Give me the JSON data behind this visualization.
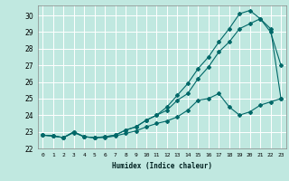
{
  "xlabel": "Humidex (Indice chaleur)",
  "bg_color": "#c0e8e0",
  "grid_color": "#ffffff",
  "line_color": "#006868",
  "xlim": [
    -0.5,
    23.5
  ],
  "ylim": [
    22,
    30.6
  ],
  "xticks": [
    0,
    1,
    2,
    3,
    4,
    5,
    6,
    7,
    8,
    9,
    10,
    11,
    12,
    13,
    14,
    15,
    16,
    17,
    18,
    19,
    20,
    21,
    22,
    23
  ],
  "yticks": [
    22,
    23,
    24,
    25,
    26,
    27,
    28,
    29,
    30
  ],
  "line1_x": [
    0,
    1,
    2,
    3,
    4,
    5,
    6,
    7,
    8,
    9,
    10,
    11,
    12,
    13,
    14,
    15,
    16,
    17,
    18,
    19,
    20,
    21,
    22,
    23
  ],
  "line1_y": [
    22.8,
    22.75,
    22.65,
    22.95,
    22.7,
    22.65,
    22.65,
    22.75,
    22.9,
    23.05,
    23.3,
    23.5,
    23.65,
    23.9,
    24.3,
    24.9,
    25.0,
    25.3,
    24.5,
    24.0,
    24.2,
    24.6,
    24.8,
    25.0
  ],
  "line2_x": [
    0,
    1,
    2,
    3,
    4,
    5,
    6,
    7,
    8,
    9,
    10,
    11,
    12,
    13,
    14,
    15,
    16,
    17,
    18,
    19,
    20,
    21,
    22,
    23
  ],
  "line2_y": [
    22.8,
    22.75,
    22.65,
    23.0,
    22.7,
    22.65,
    22.7,
    22.8,
    23.1,
    23.3,
    23.7,
    24.0,
    24.3,
    24.9,
    25.3,
    26.2,
    26.9,
    27.8,
    28.4,
    29.2,
    29.5,
    29.8,
    29.0,
    27.0
  ],
  "line3_x": [
    0,
    1,
    2,
    3,
    4,
    5,
    6,
    7,
    8,
    9,
    10,
    11,
    12,
    13,
    14,
    15,
    16,
    17,
    18,
    19,
    20,
    21,
    22,
    23
  ],
  "line3_y": [
    22.8,
    22.75,
    22.65,
    23.0,
    22.7,
    22.65,
    22.7,
    22.8,
    23.1,
    23.3,
    23.7,
    24.0,
    24.5,
    25.2,
    25.9,
    26.8,
    27.5,
    28.4,
    29.2,
    30.1,
    30.3,
    29.8,
    29.2,
    25.0
  ]
}
